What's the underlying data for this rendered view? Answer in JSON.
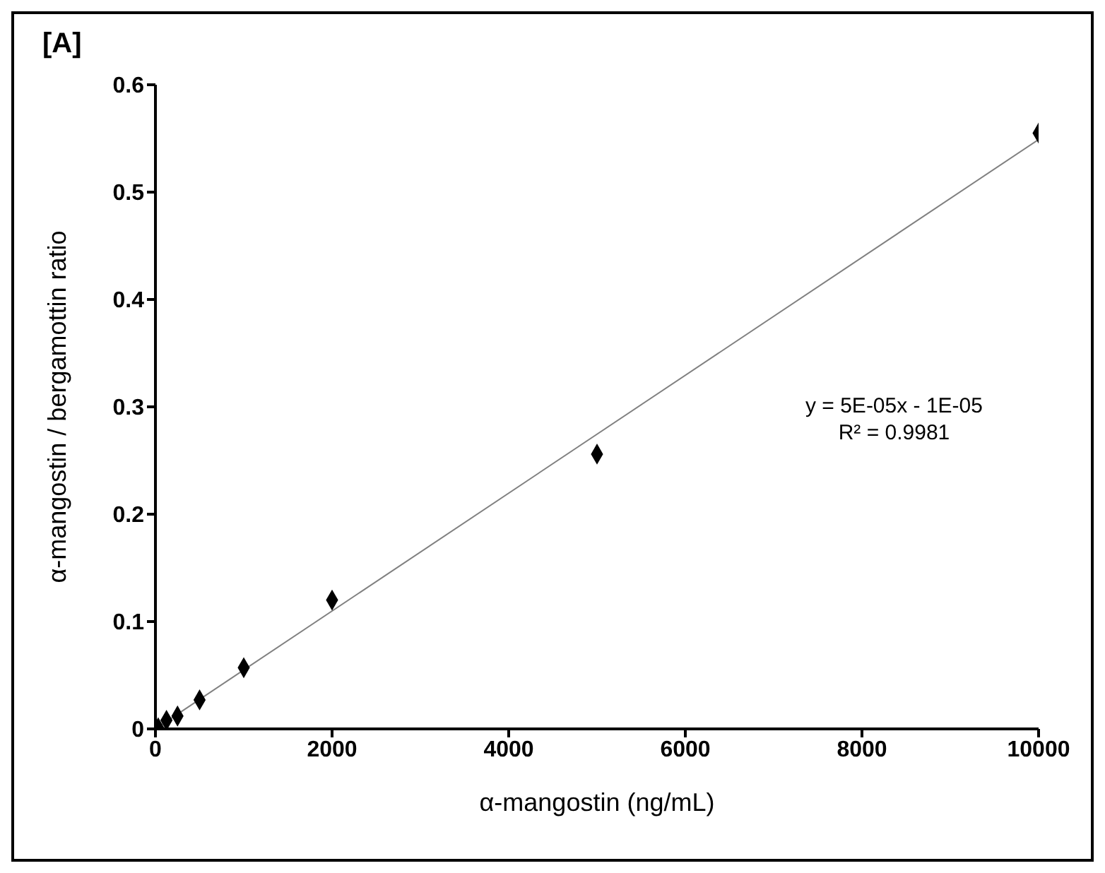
{
  "chart_data": {
    "type": "scatter",
    "title": "[A]",
    "xlabel": "α-mangostin (ng/mL)",
    "ylabel": "α-mangostin / bergamottin ratio",
    "xlim": [
      0,
      10000
    ],
    "xticks": [
      0,
      2000,
      4000,
      6000,
      8000,
      10000
    ],
    "ylim": [
      0,
      0.6
    ],
    "yticks": [
      0,
      0.1,
      0.2,
      0.3,
      0.4,
      0.5,
      0.6
    ],
    "grid": false,
    "legend": false,
    "marker": "diamond",
    "series": [
      {
        "color": "#000000",
        "x": [
          31.25,
          125,
          250,
          500,
          1000,
          2000,
          5000,
          10000
        ],
        "values": [
          0.001,
          0.008,
          0.012,
          0.027,
          0.057,
          0.12,
          0.256,
          0.555
        ]
      },
      {
        "type": "line",
        "color": "#808080",
        "marker": "none",
        "line_style": "solid",
        "x": [
          0,
          10000
        ],
        "values": [
          0,
          0.549
        ]
      }
    ],
    "annotations": [
      "y = 5E-05x - 1E-05",
      "R² = 0.9981"
    ]
  }
}
